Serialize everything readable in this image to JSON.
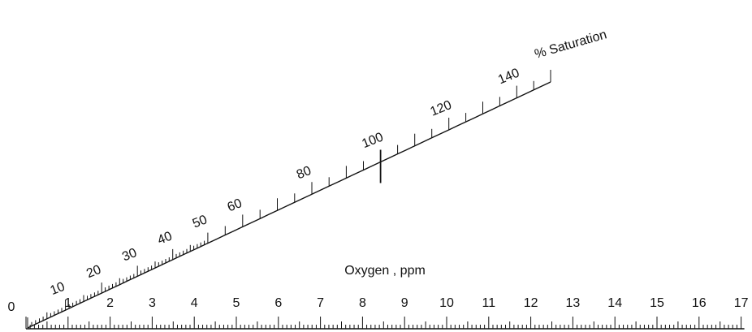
{
  "nomogram": {
    "ink_color": "#111111",
    "background_color": "#ffffff",
    "oxygen_scale": {
      "title": "Oxygen , ppm",
      "labels": [
        "0",
        "1",
        "2",
        "3",
        "4",
        "5",
        "6",
        "7",
        "8",
        "9",
        "10",
        "11",
        "12",
        "13",
        "14",
        "15",
        "16",
        "17"
      ],
      "minor_ticks_per_unit": 10
    },
    "saturation_scale": {
      "title": "% Saturation",
      "labels": [
        "10",
        "20",
        "30",
        "40",
        "50",
        "60",
        "80",
        "100",
        "120",
        "140"
      ],
      "reference_value": "100"
    }
  }
}
